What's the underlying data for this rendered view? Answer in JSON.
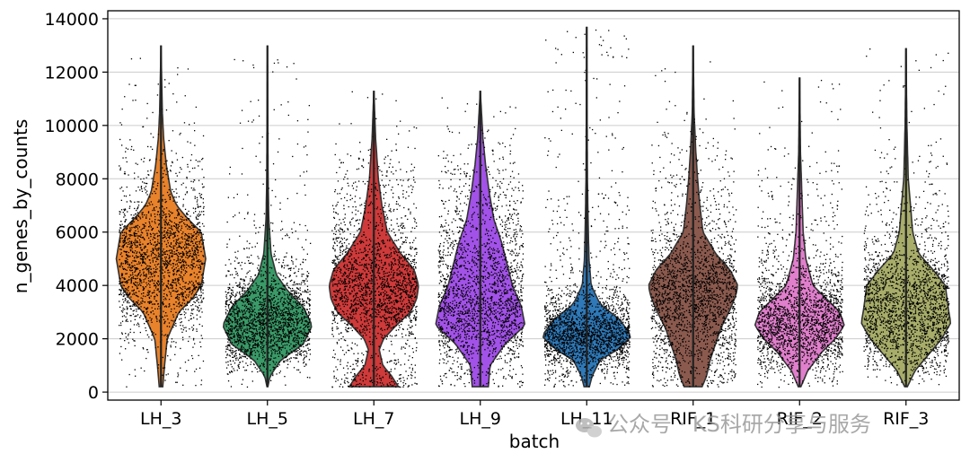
{
  "chart_data": {
    "type": "violin",
    "xlabel": "batch",
    "ylabel": "n_genes_by_counts",
    "ylim": [
      -300,
      14300
    ],
    "yticks": [
      0,
      2000,
      4000,
      6000,
      8000,
      10000,
      12000,
      14000
    ],
    "ytick_labels": [
      "0",
      "2000",
      "4000",
      "6000",
      "8000",
      "10000",
      "12000",
      "14000"
    ],
    "grid": true,
    "categories": [
      "LH_3",
      "LH_5",
      "LH_7",
      "LH_9",
      "LH_11",
      "RIF_1",
      "RIF_2",
      "RIF_3"
    ],
    "violins": [
      {
        "name": "LH_3",
        "color": "#e8822b",
        "min": 200,
        "max": 13000,
        "median": 5000,
        "density": [
          [
            200,
            0.04
          ],
          [
            1000,
            0.08
          ],
          [
            2000,
            0.14
          ],
          [
            3000,
            0.4
          ],
          [
            3500,
            0.7
          ],
          [
            4000,
            0.9
          ],
          [
            5000,
            1.0
          ],
          [
            6000,
            0.9
          ],
          [
            6500,
            0.6
          ],
          [
            7000,
            0.35
          ],
          [
            7500,
            0.22
          ],
          [
            8500,
            0.12
          ],
          [
            9500,
            0.06
          ],
          [
            10500,
            0.03
          ],
          [
            13000,
            0.0
          ]
        ]
      },
      {
        "name": "LH_5",
        "color": "#3a9a68",
        "min": 200,
        "max": 13000,
        "median": 2500,
        "density": [
          [
            200,
            0.01
          ],
          [
            600,
            0.06
          ],
          [
            1200,
            0.3
          ],
          [
            1800,
            0.8
          ],
          [
            2500,
            1.0
          ],
          [
            3200,
            0.8
          ],
          [
            3800,
            0.45
          ],
          [
            4400,
            0.2
          ],
          [
            5200,
            0.08
          ],
          [
            6500,
            0.03
          ],
          [
            8000,
            0.015
          ],
          [
            13000,
            0.0
          ]
        ]
      },
      {
        "name": "LH_7",
        "color": "#cf3a3a",
        "min": 200,
        "max": 11300,
        "median": 4000,
        "density": [
          [
            200,
            0.55
          ],
          [
            600,
            0.4
          ],
          [
            1000,
            0.2
          ],
          [
            1600,
            0.12
          ],
          [
            2000,
            0.22
          ],
          [
            2500,
            0.5
          ],
          [
            3000,
            0.82
          ],
          [
            3500,
            0.96
          ],
          [
            4000,
            1.0
          ],
          [
            4600,
            0.9
          ],
          [
            5200,
            0.6
          ],
          [
            6000,
            0.3
          ],
          [
            7000,
            0.18
          ],
          [
            8000,
            0.1
          ],
          [
            9500,
            0.04
          ],
          [
            11300,
            0.0
          ]
        ]
      },
      {
        "name": "LH_9",
        "color": "#a252e8",
        "min": 200,
        "max": 11300,
        "median": 3000,
        "density": [
          [
            200,
            0.18
          ],
          [
            1000,
            0.22
          ],
          [
            1800,
            0.55
          ],
          [
            2500,
            1.0
          ],
          [
            3200,
            0.92
          ],
          [
            4000,
            0.72
          ],
          [
            4800,
            0.6
          ],
          [
            5600,
            0.48
          ],
          [
            6500,
            0.3
          ],
          [
            7500,
            0.2
          ],
          [
            8500,
            0.12
          ],
          [
            9500,
            0.06
          ],
          [
            11300,
            0.0
          ]
        ]
      },
      {
        "name": "LH_11",
        "color": "#2f79b8",
        "min": 200,
        "max": 13700,
        "median": 2200,
        "density": [
          [
            200,
            0.06
          ],
          [
            600,
            0.12
          ],
          [
            1200,
            0.3
          ],
          [
            1600,
            0.7
          ],
          [
            2100,
            1.0
          ],
          [
            2700,
            0.75
          ],
          [
            3300,
            0.3
          ],
          [
            4000,
            0.1
          ],
          [
            5000,
            0.05
          ],
          [
            6500,
            0.03
          ],
          [
            8000,
            0.015
          ],
          [
            13700,
            0.0
          ]
        ]
      },
      {
        "name": "RIF_1",
        "color": "#8b5a4e",
        "min": 200,
        "max": 13000,
        "median": 3600,
        "density": [
          [
            200,
            0.2
          ],
          [
            600,
            0.3
          ],
          [
            1200,
            0.38
          ],
          [
            1800,
            0.5
          ],
          [
            2400,
            0.62
          ],
          [
            3000,
            0.8
          ],
          [
            3600,
            0.95
          ],
          [
            4000,
            1.0
          ],
          [
            4600,
            0.82
          ],
          [
            5200,
            0.5
          ],
          [
            6000,
            0.22
          ],
          [
            7000,
            0.15
          ],
          [
            8000,
            0.1
          ],
          [
            9000,
            0.06
          ],
          [
            10500,
            0.02
          ],
          [
            13000,
            0.0
          ]
        ]
      },
      {
        "name": "RIF_2",
        "color": "#e07fcc",
        "min": 200,
        "max": 11800,
        "median": 2500,
        "density": [
          [
            200,
            0.03
          ],
          [
            800,
            0.18
          ],
          [
            1500,
            0.5
          ],
          [
            2000,
            0.8
          ],
          [
            2500,
            1.0
          ],
          [
            3000,
            0.9
          ],
          [
            3500,
            0.6
          ],
          [
            4000,
            0.3
          ],
          [
            5000,
            0.14
          ],
          [
            6000,
            0.08
          ],
          [
            7500,
            0.05
          ],
          [
            9000,
            0.02
          ],
          [
            11800,
            0.0
          ]
        ]
      },
      {
        "name": "RIF_3",
        "color": "#a8ae6a",
        "min": 200,
        "max": 12900,
        "median": 2700,
        "density": [
          [
            200,
            0.03
          ],
          [
            800,
            0.2
          ],
          [
            1500,
            0.55
          ],
          [
            2000,
            0.8
          ],
          [
            2600,
            1.0
          ],
          [
            3200,
            0.94
          ],
          [
            4000,
            0.88
          ],
          [
            4600,
            0.6
          ],
          [
            5200,
            0.28
          ],
          [
            6000,
            0.15
          ],
          [
            7000,
            0.1
          ],
          [
            8000,
            0.05
          ],
          [
            10000,
            0.02
          ],
          [
            12900,
            0.0
          ]
        ]
      }
    ]
  },
  "watermark": {
    "icon": "wechat-icon",
    "text": "公众号 · KS科研分享与服务"
  },
  "colors": {
    "grid": "#cccccc",
    "frame": "#000000",
    "points": "#000000"
  }
}
